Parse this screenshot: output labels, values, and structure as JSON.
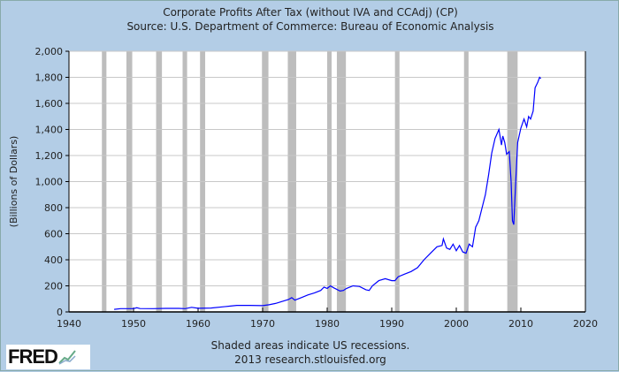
{
  "chart_data": {
    "type": "line",
    "title": "Corporate Profits After Tax (without IVA and CCAdj) (CP)",
    "subtitle": "Source: U.S. Department of Commerce: Bureau of Economic Analysis",
    "xlabel": "",
    "ylabel": "(Billions of Dollars)",
    "xlim": [
      1940,
      2020
    ],
    "ylim": [
      0,
      2000
    ],
    "xticks": [
      "1940",
      "1950",
      "1960",
      "1970",
      "1980",
      "1990",
      "2000",
      "2010",
      "2020"
    ],
    "yticks": [
      "0",
      "200",
      "400",
      "600",
      "800",
      "1,000",
      "1,200",
      "1,400",
      "1,600",
      "1,800",
      "2,000"
    ],
    "grid": true,
    "series": [
      {
        "name": "CP",
        "color": "#0000ff",
        "x": [
          1947,
          1948,
          1950,
          1950.5,
          1951,
          1953,
          1955,
          1957,
          1958,
          1959,
          1960,
          1962,
          1965,
          1966,
          1968,
          1970,
          1971,
          1972,
          1973,
          1974,
          1974.5,
          1975,
          1976,
          1977,
          1978,
          1979,
          1979.5,
          1980,
          1980.5,
          1981,
          1982,
          1982.5,
          1983,
          1984,
          1985,
          1986,
          1986.5,
          1987,
          1988,
          1989,
          1990,
          1990.5,
          1991,
          1992,
          1993,
          1994,
          1995,
          1996,
          1997,
          1997.8,
          1998,
          1998.5,
          1999,
          1999.5,
          2000,
          2000.5,
          2001,
          2001.5,
          2002,
          2002.5,
          2003,
          2003.5,
          2004,
          2004.5,
          2005,
          2005.5,
          2006,
          2006.6,
          2007,
          2007.2,
          2007.5,
          2007.8,
          2008.2,
          2008.5,
          2008.7,
          2008.9,
          2009.2,
          2009.5,
          2010,
          2010.5,
          2010.9,
          2011.2,
          2011.5,
          2011.9,
          2012.2,
          2012.6,
          2012.9,
          2013.1
        ],
        "y": [
          20,
          25,
          25,
          32,
          26,
          25,
          27,
          27,
          25,
          35,
          28,
          30,
          45,
          50,
          50,
          48,
          55,
          65,
          80,
          95,
          110,
          90,
          110,
          130,
          145,
          165,
          190,
          180,
          200,
          185,
          160,
          165,
          180,
          200,
          195,
          170,
          165,
          200,
          240,
          255,
          240,
          240,
          270,
          290,
          310,
          340,
          400,
          450,
          500,
          510,
          560,
          490,
          480,
          520,
          470,
          510,
          460,
          450,
          520,
          500,
          650,
          700,
          800,
          900,
          1050,
          1220,
          1330,
          1400,
          1280,
          1350,
          1300,
          1210,
          1230,
          1000,
          700,
          670,
          1000,
          1300,
          1410,
          1480,
          1420,
          1500,
          1480,
          1540,
          1720,
          1760,
          1800,
          1790
        ]
      }
    ],
    "recessions": [
      [
        1945.1,
        1945.8
      ],
      [
        1948.9,
        1949.8
      ],
      [
        1953.5,
        1954.4
      ],
      [
        1957.6,
        1958.3
      ],
      [
        1960.3,
        1961.1
      ],
      [
        1969.9,
        1970.9
      ],
      [
        1973.9,
        1975.2
      ],
      [
        1980.0,
        1980.5
      ],
      [
        1981.5,
        1982.9
      ],
      [
        1990.5,
        1991.2
      ],
      [
        2001.2,
        2001.9
      ],
      [
        2007.9,
        2009.5
      ]
    ]
  },
  "footer": {
    "note": "Shaded areas indicate US recessions.",
    "source": "2013 research.stlouisfed.org",
    "logo": "FRED"
  }
}
